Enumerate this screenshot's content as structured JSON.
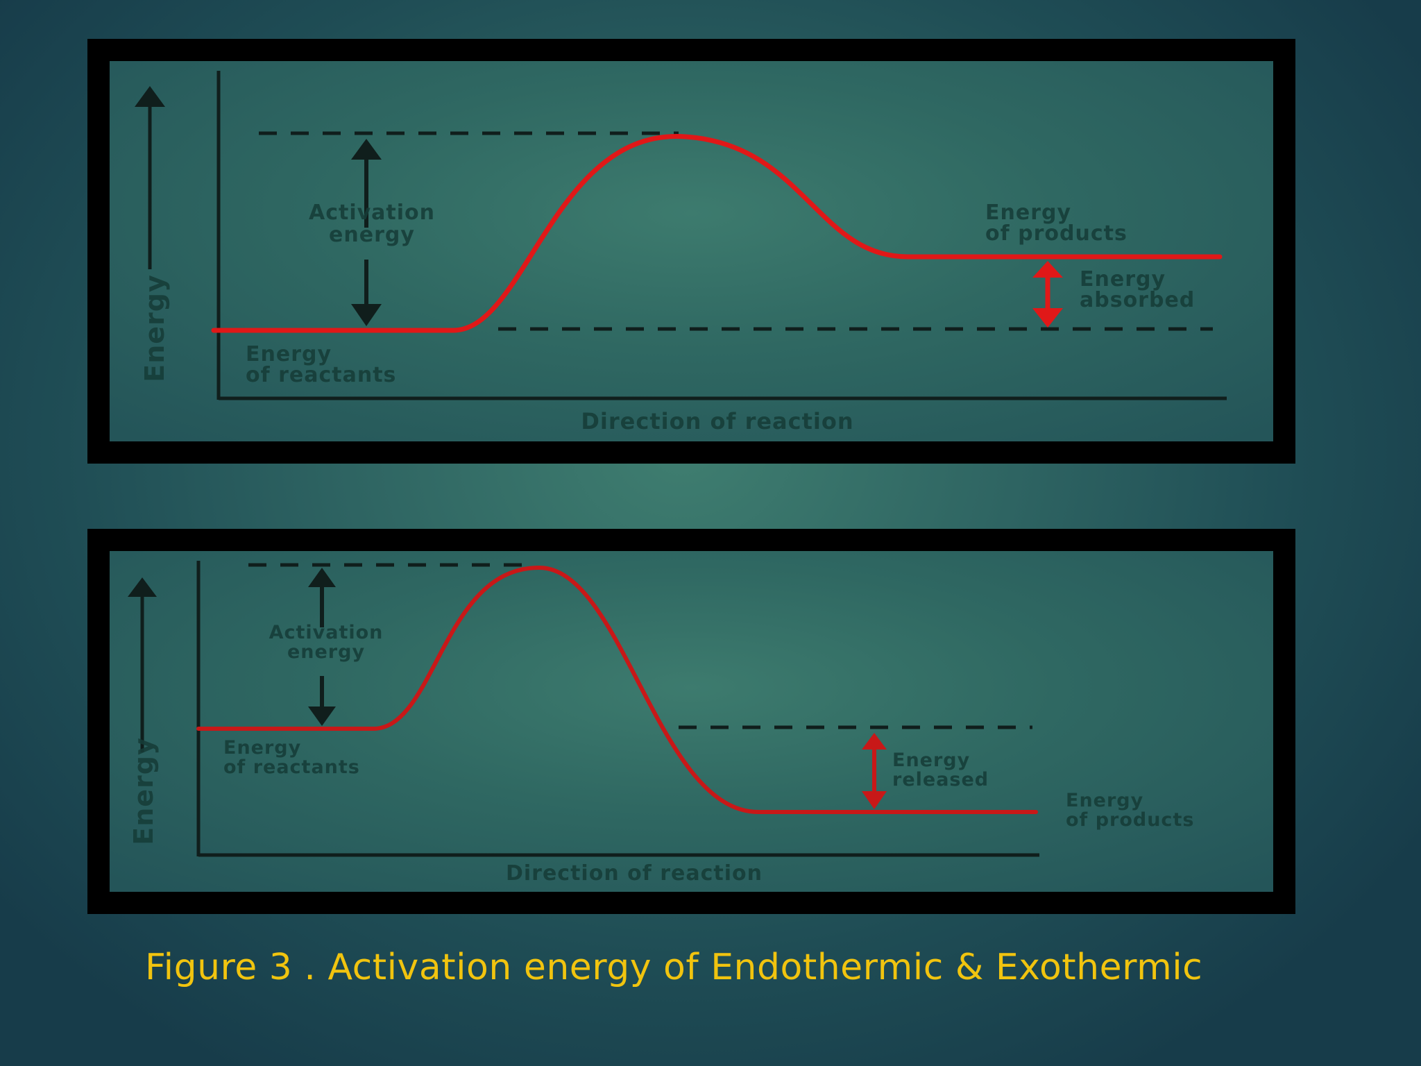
{
  "diagrams": [
    {
      "id": "endothermic",
      "y_axis_label": "Energy",
      "x_axis_label": "Direction of reaction",
      "activation_label": [
        "Activation",
        "energy"
      ],
      "reactants_label": [
        "Energy",
        "of reactants"
      ],
      "products_label": [
        "Energy",
        "of products"
      ],
      "delta_label": [
        "Energy",
        "absorbed"
      ],
      "curve_color": "#e01818"
    },
    {
      "id": "exothermic",
      "y_axis_label": "Energy",
      "x_axis_label": "Direction of reaction",
      "activation_label": [
        "Activation",
        "energy"
      ],
      "reactants_label": [
        "Energy",
        "of reactants"
      ],
      "products_label": [
        "Energy",
        "of products"
      ],
      "delta_label": [
        "Energy",
        "released"
      ],
      "curve_color": "#c81818"
    }
  ],
  "caption": "Figure 3 . Activation energy of Endothermic & Exothermic",
  "caption_color": "#f1c40f"
}
